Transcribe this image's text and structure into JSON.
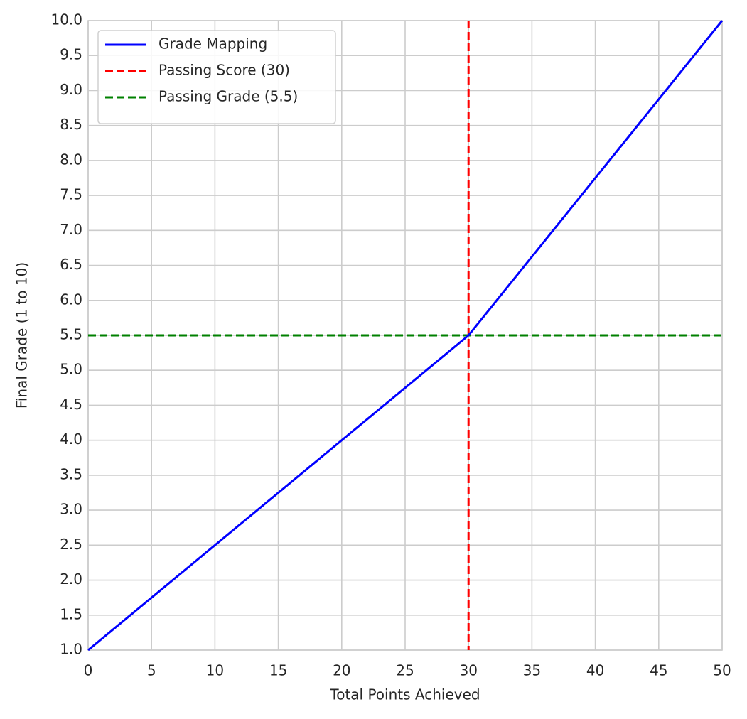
{
  "chart_data": {
    "type": "line",
    "x_label": "Total Points Achieved",
    "y_label": "Final Grade (1 to 10)",
    "xlim": [
      0,
      50
    ],
    "ylim": [
      1,
      10
    ],
    "xticks": [
      0,
      5,
      10,
      15,
      20,
      25,
      30,
      35,
      40,
      45,
      50
    ],
    "yticks": [
      {
        "value": 1,
        "label": "1.0"
      },
      {
        "value": 1.5,
        "label": "1.5"
      },
      {
        "value": 2,
        "label": "2.0"
      },
      {
        "value": 2.5,
        "label": "2.5"
      },
      {
        "value": 3,
        "label": "3.0"
      },
      {
        "value": 3.5,
        "label": "3.5"
      },
      {
        "value": 4,
        "label": "4.0"
      },
      {
        "value": 4.5,
        "label": "4.5"
      },
      {
        "value": 5,
        "label": "5.0"
      },
      {
        "value": 5.5,
        "label": "5.5"
      },
      {
        "value": 6,
        "label": "6.0"
      },
      {
        "value": 6.5,
        "label": "6.5"
      },
      {
        "value": 7,
        "label": "7.0"
      },
      {
        "value": 7.5,
        "label": "7.5"
      },
      {
        "value": 8,
        "label": "8.0"
      },
      {
        "value": 8.5,
        "label": "8.5"
      },
      {
        "value": 9,
        "label": "9.0"
      },
      {
        "value": 9.5,
        "label": "9.5"
      },
      {
        "value": 10,
        "label": "10.0"
      }
    ],
    "grid": true,
    "legend": "upper left",
    "series": [
      {
        "name": "Grade Mapping",
        "color": "#0000ff",
        "x": [
          0,
          30,
          50
        ],
        "values": [
          1,
          5.5,
          10
        ]
      }
    ],
    "reference_lines": [
      {
        "name": "Passing Score (30)",
        "color": "#ff0000",
        "orientation": "vertical",
        "value": 30
      },
      {
        "name": "Passing Grade (5.5)",
        "color": "#008000",
        "orientation": "horizontal",
        "value": 5.5
      }
    ]
  }
}
